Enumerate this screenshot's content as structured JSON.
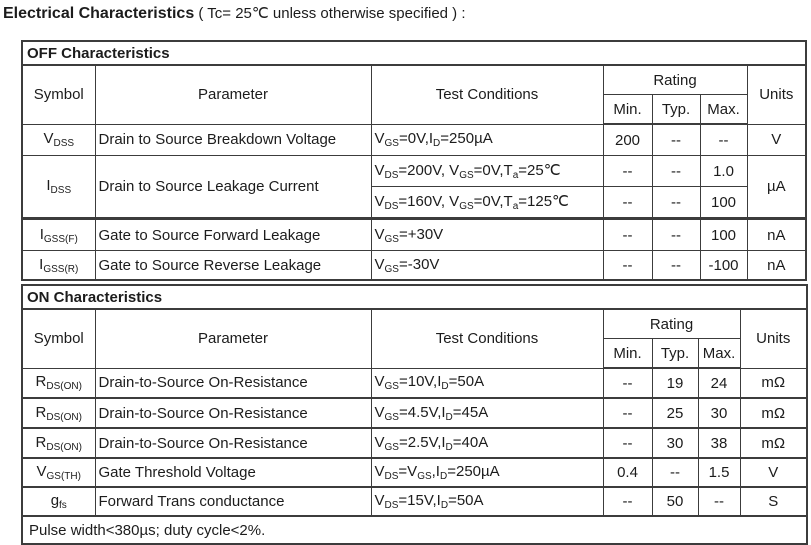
{
  "title": {
    "bold": "Electrical Characteristics",
    "note": "( Tc= 25℃  unless otherwise specified ) :"
  },
  "headers": {
    "symbol": "Symbol",
    "parameter": "Parameter",
    "test_conditions": "Test Conditions",
    "rating": "Rating",
    "min": "Min.",
    "typ": "Typ.",
    "max": "Max.",
    "units": "Units"
  },
  "off": {
    "section_title": "OFF Characteristics",
    "rows": [
      {
        "symbol": [
          [
            "n",
            "V"
          ],
          [
            "s",
            "DSS"
          ]
        ],
        "parameter": "Drain to Source Breakdown Voltage",
        "test": [
          [
            "n",
            "V"
          ],
          [
            "s",
            "GS"
          ],
          [
            "n",
            "=0V,I"
          ],
          [
            "s",
            "D"
          ],
          [
            "n",
            "=250µA"
          ]
        ],
        "min": "200",
        "typ": "--",
        "max": "--",
        "units": "V"
      },
      {
        "symbol": [
          [
            "n",
            "I"
          ],
          [
            "s",
            "DSS"
          ]
        ],
        "parameter": "Drain to Source Leakage Current",
        "test": [
          [
            "n",
            "V"
          ],
          [
            "s",
            "DS"
          ],
          [
            "n",
            "=200V, V"
          ],
          [
            "s",
            "GS"
          ],
          [
            "n",
            "=0V,T"
          ],
          [
            "s",
            "a"
          ],
          [
            "n",
            "=25℃"
          ]
        ],
        "min": "--",
        "typ": "--",
        "max": "1.0",
        "units": "µA"
      },
      {
        "test": [
          [
            "n",
            "V"
          ],
          [
            "s",
            "DS"
          ],
          [
            "n",
            "=160V, V"
          ],
          [
            "s",
            "GS"
          ],
          [
            "n",
            "=0V,T"
          ],
          [
            "s",
            "a"
          ],
          [
            "n",
            "=125℃"
          ]
        ],
        "min": "--",
        "typ": "--",
        "max": "100"
      },
      {
        "symbol": [
          [
            "n",
            "I"
          ],
          [
            "s",
            "GSS(F)"
          ]
        ],
        "parameter": "Gate to Source Forward Leakage",
        "test": [
          [
            "n",
            "V"
          ],
          [
            "s",
            "GS"
          ],
          [
            "n",
            "=+30V"
          ]
        ],
        "min": "--",
        "typ": "--",
        "max": "100",
        "units": "nA"
      },
      {
        "symbol": [
          [
            "n",
            "I"
          ],
          [
            "s",
            "GSS(R)"
          ]
        ],
        "parameter": "Gate to Source Reverse Leakage",
        "test": [
          [
            "n",
            "V"
          ],
          [
            "s",
            "GS"
          ],
          [
            "n",
            "=-30V"
          ]
        ],
        "min": "--",
        "typ": "--",
        "max": "-100",
        "units": "nA"
      }
    ]
  },
  "on": {
    "section_title": "ON Characteristics",
    "rows": [
      {
        "symbol": [
          [
            "n",
            "R"
          ],
          [
            "s",
            "DS(ON)"
          ]
        ],
        "parameter": "Drain-to-Source On-Resistance",
        "test": [
          [
            "n",
            "V"
          ],
          [
            "s",
            "GS"
          ],
          [
            "n",
            "=10V,I"
          ],
          [
            "s",
            "D"
          ],
          [
            "n",
            "=50A"
          ]
        ],
        "min": "--",
        "typ": "19",
        "max": "24",
        "units": "mΩ"
      },
      {
        "symbol": [
          [
            "n",
            "R"
          ],
          [
            "s",
            "DS(ON)"
          ]
        ],
        "parameter": "Drain-to-Source On-Resistance",
        "test": [
          [
            "n",
            "V"
          ],
          [
            "s",
            "GS"
          ],
          [
            "n",
            "=4.5V,I"
          ],
          [
            "s",
            "D"
          ],
          [
            "n",
            "=45A"
          ]
        ],
        "min": "--",
        "typ": "25",
        "max": "30",
        "units": "mΩ"
      },
      {
        "symbol": [
          [
            "n",
            "R"
          ],
          [
            "s",
            "DS(ON)"
          ]
        ],
        "parameter": "Drain-to-Source On-Resistance",
        "test": [
          [
            "n",
            "V"
          ],
          [
            "s",
            "GS"
          ],
          [
            "n",
            "=2.5V,I"
          ],
          [
            "s",
            "D"
          ],
          [
            "n",
            "=40A"
          ]
        ],
        "min": "--",
        "typ": "30",
        "max": "38",
        "units": "mΩ"
      },
      {
        "symbol": [
          [
            "n",
            "V"
          ],
          [
            "s",
            "GS(TH)"
          ]
        ],
        "parameter": "Gate Threshold Voltage",
        "test": [
          [
            "n",
            "V"
          ],
          [
            "s",
            "DS"
          ],
          [
            "n",
            "=V"
          ],
          [
            "s",
            "GS"
          ],
          [
            "n",
            ",I"
          ],
          [
            "s",
            "D"
          ],
          [
            "n",
            "=250µA"
          ]
        ],
        "min": "0.4",
        "typ": "--",
        "max": "1.5",
        "units": "V"
      },
      {
        "symbol": [
          [
            "n",
            "g"
          ],
          [
            "s",
            "fs"
          ]
        ],
        "parameter": "Forward Trans conductance",
        "test": [
          [
            "n",
            "V"
          ],
          [
            "s",
            "DS"
          ],
          [
            "n",
            "=15V,I"
          ],
          [
            "s",
            "D"
          ],
          [
            "n",
            "=50A"
          ]
        ],
        "min": "--",
        "typ": "50",
        "max": "--",
        "units": "S"
      }
    ],
    "footnote": "Pulse width<380µs; duty cycle<2%."
  }
}
